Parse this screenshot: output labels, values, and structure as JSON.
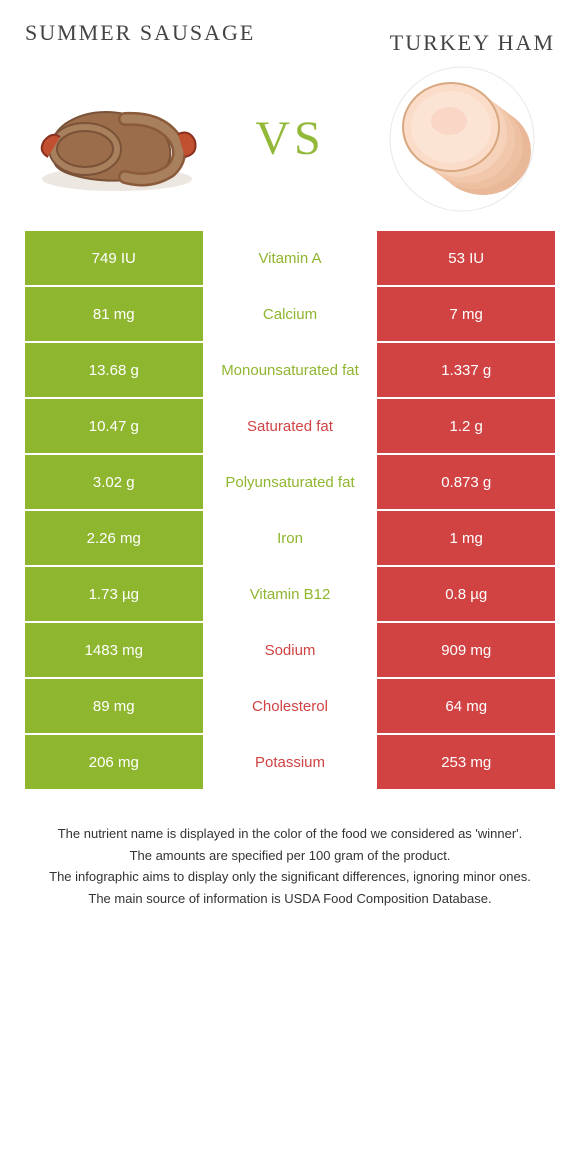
{
  "header": {
    "left_title": "Summer Sausage",
    "right_title": "Turkey Ham",
    "vs": "VS"
  },
  "colors": {
    "green": "#8fb62f",
    "red": "#d14343",
    "center_green_text": "#8fb62f",
    "center_red_text": "#d14343",
    "white": "#ffffff"
  },
  "rows": [
    {
      "left": "749 IU",
      "center": "Vitamin A",
      "right": "53 IU",
      "winner": "left"
    },
    {
      "left": "81 mg",
      "center": "Calcium",
      "right": "7 mg",
      "winner": "left"
    },
    {
      "left": "13.68 g",
      "center": "Monounsaturated fat",
      "right": "1.337 g",
      "winner": "left"
    },
    {
      "left": "10.47 g",
      "center": "Saturated fat",
      "right": "1.2 g",
      "winner": "right"
    },
    {
      "left": "3.02 g",
      "center": "Polyunsaturated fat",
      "right": "0.873 g",
      "winner": "left"
    },
    {
      "left": "2.26 mg",
      "center": "Iron",
      "right": "1 mg",
      "winner": "left"
    },
    {
      "left": "1.73 µg",
      "center": "Vitamin B12",
      "right": "0.8 µg",
      "winner": "left"
    },
    {
      "left": "1483 mg",
      "center": "Sodium",
      "right": "909 mg",
      "winner": "right"
    },
    {
      "left": "89 mg",
      "center": "Cholesterol",
      "right": "64 mg",
      "winner": "right"
    },
    {
      "left": "206 mg",
      "center": "Potassium",
      "right": "253 mg",
      "winner": "right"
    }
  ],
  "footer": [
    "The nutrient name is displayed in the color of the food we considered as 'winner'.",
    "The amounts are specified per 100 gram of the product.",
    "The infographic aims to display only the significant differences, ignoring minor ones.",
    "The main source of information is USDA Food Composition Database."
  ]
}
